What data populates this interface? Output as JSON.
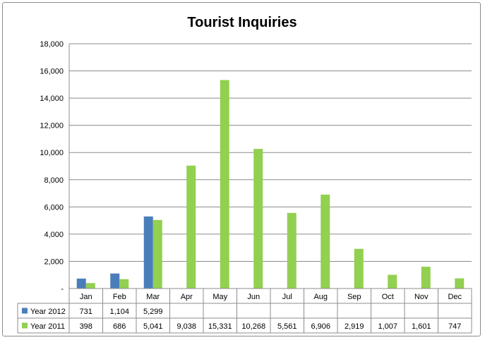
{
  "chart_data": {
    "type": "bar",
    "title": "Tourist Inquiries",
    "categories": [
      "Jan",
      "Feb",
      "Mar",
      "Apr",
      "May",
      "Jun",
      "Jul",
      "Aug",
      "Sep",
      "Oct",
      "Nov",
      "Dec"
    ],
    "series": [
      {
        "name": "Year 2012",
        "color": "#4a7ebb",
        "values": [
          731,
          1104,
          5299,
          null,
          null,
          null,
          null,
          null,
          null,
          null,
          null,
          null
        ],
        "labels": [
          "731",
          "1,104",
          "5,299",
          "",
          "",
          "",
          "",
          "",
          "",
          "",
          "",
          ""
        ]
      },
      {
        "name": "Year 2011",
        "color": "#92d050",
        "values": [
          398,
          686,
          5041,
          9038,
          15331,
          10268,
          5561,
          6906,
          2919,
          1007,
          1601,
          747
        ],
        "labels": [
          "398",
          "686",
          "5,041",
          "9,038",
          "15,331",
          "10,268",
          "5,561",
          "6,906",
          "2,919",
          "1,007",
          "1,601",
          "747"
        ]
      }
    ],
    "ylim": [
      0,
      18000
    ],
    "yticks": [
      0,
      2000,
      4000,
      6000,
      8000,
      10000,
      12000,
      14000,
      16000,
      18000
    ],
    "ytick_labels": [
      "-",
      "2,000",
      "4,000",
      "6,000",
      "8,000",
      "10,000",
      "12,000",
      "14,000",
      "16,000",
      "18,000"
    ],
    "grid": true,
    "legend": "data-table"
  }
}
